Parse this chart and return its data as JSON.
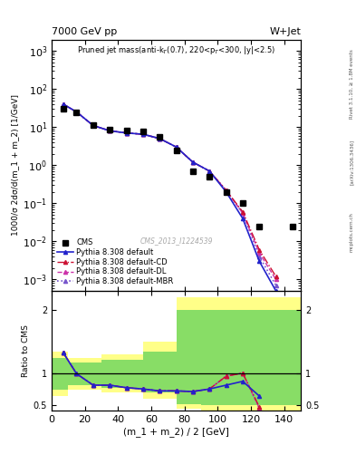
{
  "title_left": "7000 GeV pp",
  "title_right": "W+Jet",
  "plot_title": "Pruned jet mass(anti-k$_T$(0.7), 220<p$_T$<300, |y|<2.5)",
  "xlabel": "(m_1 + m_2) / 2 [GeV]",
  "ylabel_main": "1000/σ 2dσ/d(m_1 + m_2) [1/GeV]",
  "ylabel_ratio": "Ratio to CMS",
  "watermark": "CMS_2013_I1224539",
  "rivet_label": "Rivet 3.1.10, ≥ 1.8M events",
  "arxiv_label": "[arXiv:1306.3436]",
  "mcplots_label": "mcplots.cern.ch",
  "cms_x": [
    7,
    15,
    25,
    35,
    45,
    55,
    65,
    75,
    85,
    95,
    105,
    115,
    125,
    145
  ],
  "cms_y": [
    30,
    25,
    11,
    8.5,
    8,
    7.5,
    5.5,
    2.5,
    0.7,
    0.5,
    0.2,
    0.1,
    0.025,
    0.025
  ],
  "pythia_default_x": [
    7,
    15,
    25,
    35,
    45,
    55,
    65,
    75,
    85,
    95,
    105,
    115,
    125,
    135
  ],
  "pythia_default_y": [
    40,
    25,
    11,
    8,
    7,
    6.5,
    5,
    3.0,
    1.2,
    0.7,
    0.2,
    0.04,
    0.003,
    0.0005
  ],
  "pythia_CD_x": [
    7,
    15,
    25,
    35,
    45,
    55,
    65,
    75,
    85,
    95,
    105,
    115,
    125,
    135
  ],
  "pythia_CD_y": [
    40,
    25,
    11,
    8,
    7,
    6.5,
    5,
    3.0,
    1.2,
    0.7,
    0.22,
    0.06,
    0.006,
    0.0012
  ],
  "pythia_DL_x": [
    7,
    15,
    25,
    35,
    45,
    55,
    65,
    75,
    85,
    95,
    105,
    115,
    125,
    135
  ],
  "pythia_DL_y": [
    40,
    25,
    11,
    8,
    7,
    6.5,
    5,
    3.0,
    1.2,
    0.7,
    0.22,
    0.055,
    0.005,
    0.001
  ],
  "pythia_MBR_x": [
    7,
    15,
    25,
    35,
    45,
    55,
    65,
    75,
    85,
    95,
    105,
    115,
    125,
    135
  ],
  "pythia_MBR_y": [
    40,
    25,
    11,
    8,
    7,
    6.5,
    5,
    3.0,
    1.2,
    0.7,
    0.22,
    0.055,
    0.004,
    0.0007
  ],
  "ratio_default_x": [
    7,
    15,
    25,
    35,
    45,
    55,
    65,
    75,
    85,
    95,
    105,
    115,
    125
  ],
  "ratio_default_y": [
    1.33,
    1.0,
    0.82,
    0.82,
    0.78,
    0.76,
    0.73,
    0.73,
    0.72,
    0.76,
    0.82,
    0.88,
    0.65
  ],
  "ratio_CD_x": [
    7,
    15,
    25,
    35,
    45,
    55,
    65,
    75,
    85,
    95,
    105,
    115,
    125
  ],
  "ratio_CD_y": [
    1.33,
    1.0,
    0.82,
    0.82,
    0.78,
    0.76,
    0.73,
    0.73,
    0.72,
    0.76,
    0.96,
    1.01,
    0.48
  ],
  "ratio_DL_x": [
    7,
    15,
    25,
    35,
    45,
    55,
    65,
    75,
    85,
    95,
    105,
    115,
    125
  ],
  "ratio_DL_y": [
    1.33,
    1.0,
    0.82,
    0.82,
    0.78,
    0.76,
    0.73,
    0.73,
    0.72,
    0.76,
    0.96,
    1.01,
    0.46
  ],
  "ratio_MBR_x": [
    7,
    15,
    25,
    35,
    45,
    55,
    65,
    75,
    85,
    95,
    105,
    115,
    125
  ],
  "ratio_MBR_y": [
    1.33,
    1.0,
    0.82,
    0.82,
    0.78,
    0.76,
    0.73,
    0.73,
    0.72,
    0.76,
    0.96,
    1.01,
    0.46
  ],
  "yellow_bins": [
    [
      0,
      10
    ],
    [
      10,
      30
    ],
    [
      30,
      55
    ],
    [
      55,
      75
    ],
    [
      75,
      90
    ],
    [
      90,
      155
    ]
  ],
  "yellow_lo": [
    0.65,
    0.75,
    0.7,
    0.6,
    0.45,
    0.42
  ],
  "yellow_hi": [
    1.35,
    1.25,
    1.3,
    1.5,
    2.2,
    2.2
  ],
  "green_bins": [
    [
      0,
      10
    ],
    [
      10,
      30
    ],
    [
      30,
      55
    ],
    [
      55,
      75
    ],
    [
      75,
      90
    ],
    [
      90,
      155
    ]
  ],
  "green_lo": [
    0.75,
    0.82,
    0.78,
    0.7,
    0.52,
    0.5
  ],
  "green_hi": [
    1.25,
    1.18,
    1.22,
    1.35,
    2.0,
    2.0
  ],
  "color_default": "#2222cc",
  "color_CD": "#cc1133",
  "color_DL": "#cc33aa",
  "color_MBR": "#7755cc",
  "xlim": [
    0,
    150
  ],
  "ylim_main": [
    0.0005,
    2000
  ],
  "ylim_ratio": [
    0.42,
    2.3
  ]
}
